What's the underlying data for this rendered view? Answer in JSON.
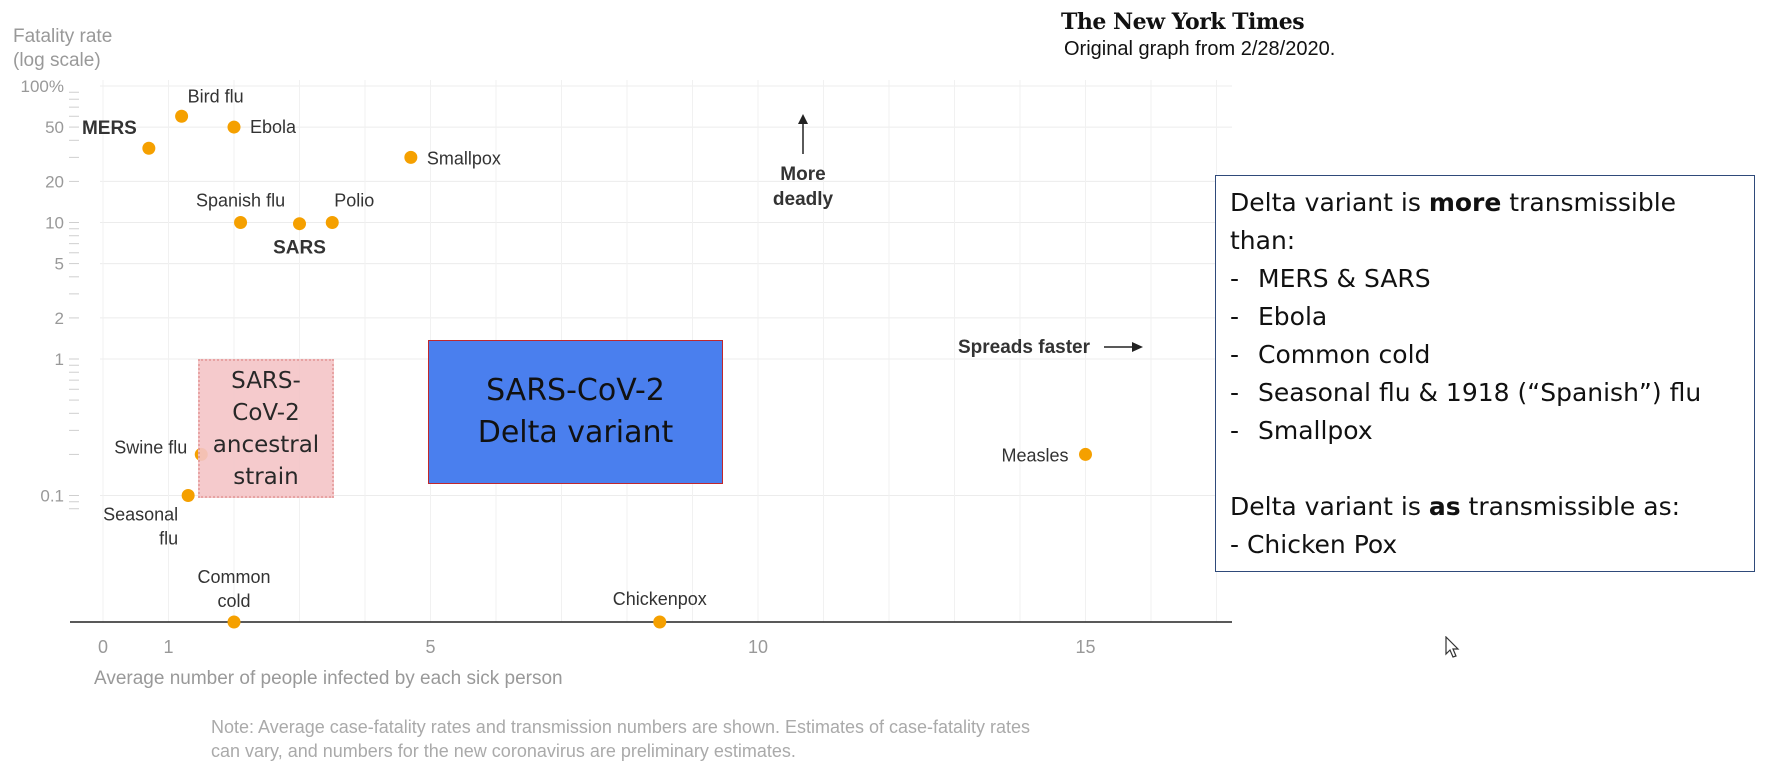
{
  "header": {
    "logo_text": "The New York Times",
    "credit": "Original graph from 2/28/2020."
  },
  "chart_data": {
    "type": "scatter",
    "y_scale": "log",
    "xlim": [
      0,
      17
    ],
    "ylim_percent": [
      0.02,
      100
    ],
    "ylabel_lines": [
      "Fatality rate",
      "(log scale)"
    ],
    "xlabel": "Average number of people infected by each sick person",
    "y_ticks": [
      {
        "value": 100,
        "label": "100%"
      },
      {
        "value": 50,
        "label": "50"
      },
      {
        "value": 20,
        "label": "20"
      },
      {
        "value": 10,
        "label": "10"
      },
      {
        "value": 5,
        "label": "5"
      },
      {
        "value": 2,
        "label": "2"
      },
      {
        "value": 1,
        "label": "1"
      },
      {
        "value": 0.1,
        "label": "0.1"
      }
    ],
    "x_ticks": [
      {
        "value": 0,
        "label": "0"
      },
      {
        "value": 1,
        "label": "1"
      },
      {
        "value": 5,
        "label": "5"
      },
      {
        "value": 10,
        "label": "10"
      },
      {
        "value": 15,
        "label": "15"
      }
    ],
    "points": [
      {
        "name": "MERS",
        "x": 0.7,
        "y": 35,
        "bold": true
      },
      {
        "name": "Bird flu",
        "x": 1.2,
        "y": 60,
        "bold": false
      },
      {
        "name": "Ebola",
        "x": 2.0,
        "y": 50,
        "bold": false
      },
      {
        "name": "Smallpox",
        "x": 4.7,
        "y": 30,
        "bold": false
      },
      {
        "name": "Spanish flu",
        "x": 2.1,
        "y": 10,
        "bold": false
      },
      {
        "name": "SARS",
        "x": 3.0,
        "y": 9.8,
        "bold": true
      },
      {
        "name": "Polio",
        "x": 3.5,
        "y": 10,
        "bold": false
      },
      {
        "name": "Swine flu",
        "x": 1.5,
        "y": 0.2,
        "bold": false
      },
      {
        "name": "Seasonal flu",
        "x": 1.3,
        "y": 0.1,
        "bold": false
      },
      {
        "name": "Measles",
        "x": 15,
        "y": 0.2,
        "bold": false
      }
    ],
    "baseline_points": [
      {
        "name": "Common cold",
        "x": 2.0
      },
      {
        "name": "Chickenpox",
        "x": 8.5
      }
    ],
    "annotations": {
      "more_deadly": [
        "More",
        "deadly"
      ],
      "spreads_faster": "Spreads faster"
    },
    "note_lines": [
      "Note: Average case-fatality rates and transmission numbers are shown. Estimates of case-fatality rates",
      "can vary, and numbers for the new coronavirus are preliminary estimates."
    ],
    "point_color": "#f5a000"
  },
  "overlays": {
    "ancestral_lines": [
      "SARS-",
      "CoV-2",
      "ancestral",
      "strain"
    ],
    "delta_lines": [
      "SARS-CoV-2",
      "Delta variant"
    ],
    "ancestral_color": "#f4c5c7",
    "delta_color": "#4a7fee"
  },
  "infobox": {
    "line1_pre": "Delta variant is ",
    "line1_bold": "more",
    "line1_post": " transmissible",
    "line2": "than:",
    "items": [
      "MERS & SARS",
      "Ebola",
      "Common cold",
      "Seasonal flu & 1918 (“Spanish”) flu",
      "Smallpox"
    ],
    "dash": "-",
    "line3_pre": "Delta variant is ",
    "line3_bold": "as",
    "line3_post": " transmissible as:",
    "line4": "- Chicken Pox"
  }
}
